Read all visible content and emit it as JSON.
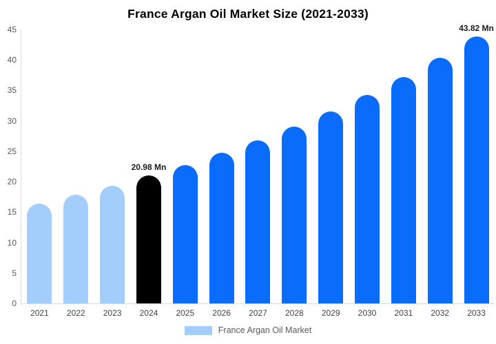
{
  "header": {
    "title": "France Argan Oil Market Size (2021-2033)"
  },
  "legend": {
    "label": "France Argan Oil Market",
    "swatch_color": "#A3CDFB",
    "position": "bottom-center"
  },
  "colors": {
    "bar_light": "#A3CDFB",
    "bar_primary": "#0A6CFA",
    "bar_highlight": "#000000",
    "axis_line": "#D9D9D9",
    "ytick_text": "#595959",
    "xtick_text": "#404040",
    "data_label_text": "#1A1A1A",
    "title_text": "#000000",
    "background": "#FFFFFF"
  },
  "chart_data": {
    "type": "bar",
    "title": "France Argan Oil Market Size (2021-2033)",
    "categories": [
      "2021",
      "2022",
      "2023",
      "2024",
      "2025",
      "2026",
      "2027",
      "2028",
      "2029",
      "2030",
      "2031",
      "2032",
      "2033"
    ],
    "values": [
      16.41,
      17.81,
      19.33,
      20.98,
      22.77,
      24.71,
      26.82,
      29.11,
      31.59,
      34.29,
      37.21,
      40.38,
      43.82
    ],
    "bar_color_roles": [
      "light",
      "light",
      "light",
      "highlight",
      "primary",
      "primary",
      "primary",
      "primary",
      "primary",
      "primary",
      "primary",
      "primary",
      "primary"
    ],
    "data_labels": [
      {
        "category": "2024",
        "text": "20.98 Mn"
      },
      {
        "category": "2033",
        "text": "43.82 Mn"
      }
    ],
    "unit": "Mn",
    "xlabel": "",
    "ylabel": "",
    "ylim": [
      0,
      45
    ],
    "yticks": [
      0,
      5,
      10,
      15,
      20,
      25,
      30,
      35,
      40,
      45
    ],
    "grid": false,
    "legend_entries": [
      "France Argan Oil Market"
    ],
    "legend_position": "bottom"
  }
}
